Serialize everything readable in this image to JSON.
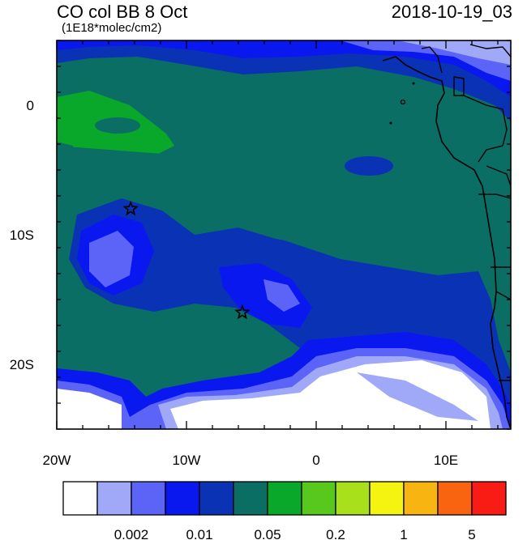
{
  "title": "CO col BB 8 Oct",
  "subtitle": "(1E18*molec/cm2)",
  "datetime": "2018-10-19_03",
  "axes": {
    "x_ticks": [
      {
        "value": -20,
        "label": "20W"
      },
      {
        "value": -10,
        "label": "10W"
      },
      {
        "value": 0,
        "label": "0"
      },
      {
        "value": 10,
        "label": "10E"
      }
    ],
    "y_ticks": [
      {
        "value": 0,
        "label": "0"
      },
      {
        "value": -10,
        "label": "10S"
      },
      {
        "value": -20,
        "label": "20S"
      }
    ],
    "lon_range": [
      -20,
      15
    ],
    "lat_range": [
      -25,
      5
    ]
  },
  "markers": [
    {
      "name": "star-marker-1",
      "lon": -14.3,
      "lat": -8.0
    },
    {
      "name": "star-marker-2",
      "lon": -5.7,
      "lat": -16.0
    }
  ],
  "colorbar": {
    "colors": [
      "#ffffff",
      "#a0a8f8",
      "#5c64f8",
      "#0a18f0",
      "#0a32b4",
      "#0a6e64",
      "#0aa82a",
      "#58c81c",
      "#a8e01c",
      "#f4f410",
      "#f8b410",
      "#f86410",
      "#f81c14"
    ],
    "labels": [
      {
        "text": "0.002",
        "boundary": 2
      },
      {
        "text": "0.01",
        "boundary": 4
      },
      {
        "text": "0.05",
        "boundary": 6
      },
      {
        "text": "0.2",
        "boundary": 8
      },
      {
        "text": "1",
        "boundary": 10
      },
      {
        "text": "5",
        "boundary": 12
      }
    ]
  }
}
